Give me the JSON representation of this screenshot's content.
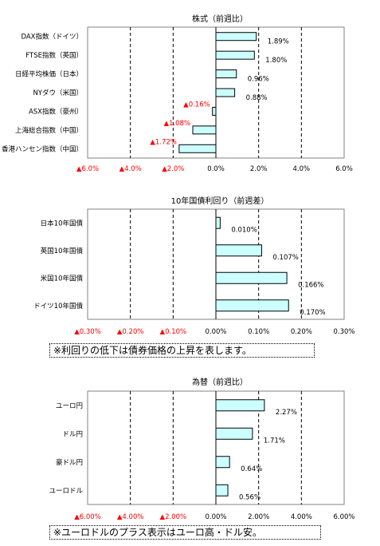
{
  "chart_data": [
    {
      "type": "bar",
      "orientation": "horizontal",
      "title": "株式（前週比）",
      "categories": [
        "DAX指数（ドイツ）",
        "FTSE指数（英国）",
        "日経平均株価（日本）",
        "NYダウ（米国）",
        "ASX指数（豪州）",
        "上海総合指数（中国）",
        "香港ハンセン指数（中国）"
      ],
      "values": [
        1.89,
        1.8,
        0.96,
        0.88,
        -0.16,
        -1.08,
        -1.72
      ],
      "value_labels": [
        "1.89%",
        "1.80%",
        "0.96%",
        "0.88%",
        "▲0.16%",
        "▲1.08%",
        "▲1.72%"
      ],
      "xlim": [
        -6,
        6
      ],
      "x_ticks": [
        -6,
        -4,
        -2,
        0,
        2,
        4,
        6
      ],
      "x_tick_labels": [
        "▲6.0%",
        "▲4.0%",
        "▲2.0%",
        "0.0%",
        "2.0%",
        "4.0%",
        "6.0%"
      ],
      "grid": "vertical dashed",
      "bar_color": "#ccffff",
      "negative_label_color": "#ff0000"
    },
    {
      "type": "bar",
      "orientation": "horizontal",
      "title": "10年国債利回り（前週差）",
      "categories": [
        "日本10年国債",
        "英国10年国債",
        "米国10年国債",
        "ドイツ10年国債"
      ],
      "values": [
        0.01,
        0.107,
        0.166,
        0.17
      ],
      "value_labels": [
        "0.010%",
        "0.107%",
        "0.166%",
        "0.170%"
      ],
      "xlim": [
        -0.3,
        0.3
      ],
      "x_ticks": [
        -0.3,
        -0.2,
        -0.1,
        0,
        0.1,
        0.2,
        0.3
      ],
      "x_tick_labels": [
        "▲0.30%",
        "▲0.20%",
        "▲0.10%",
        "0.00%",
        "0.10%",
        "0.20%",
        "0.30%"
      ],
      "grid": "vertical dashed",
      "bar_color": "#ccffff",
      "negative_label_color": "#ff0000"
    },
    {
      "type": "bar",
      "orientation": "horizontal",
      "title": "為替（前週比）",
      "categories": [
        "ユーロ円",
        "ドル円",
        "豪ドル円",
        "ユーロドル"
      ],
      "values": [
        2.27,
        1.71,
        0.64,
        0.56
      ],
      "value_labels": [
        "2.27%",
        "1.71%",
        "0.64%",
        "0.56%"
      ],
      "xlim": [
        -6,
        6
      ],
      "x_ticks": [
        -6,
        -4,
        -2,
        0,
        2,
        4,
        6
      ],
      "x_tick_labels": [
        "▲6.00%",
        "▲4.00%",
        "▲2.00%",
        "0.00%",
        "2.00%",
        "4.00%",
        "6.00%"
      ],
      "grid": "vertical dashed",
      "bar_color": "#ccffff",
      "negative_label_color": "#ff0000"
    }
  ],
  "notes": {
    "bond_note": "※利回りの低下は債券価格の上昇を表します。",
    "fx_note": "※ユーロドルのプラス表示はユーロ高・ドル安。"
  }
}
